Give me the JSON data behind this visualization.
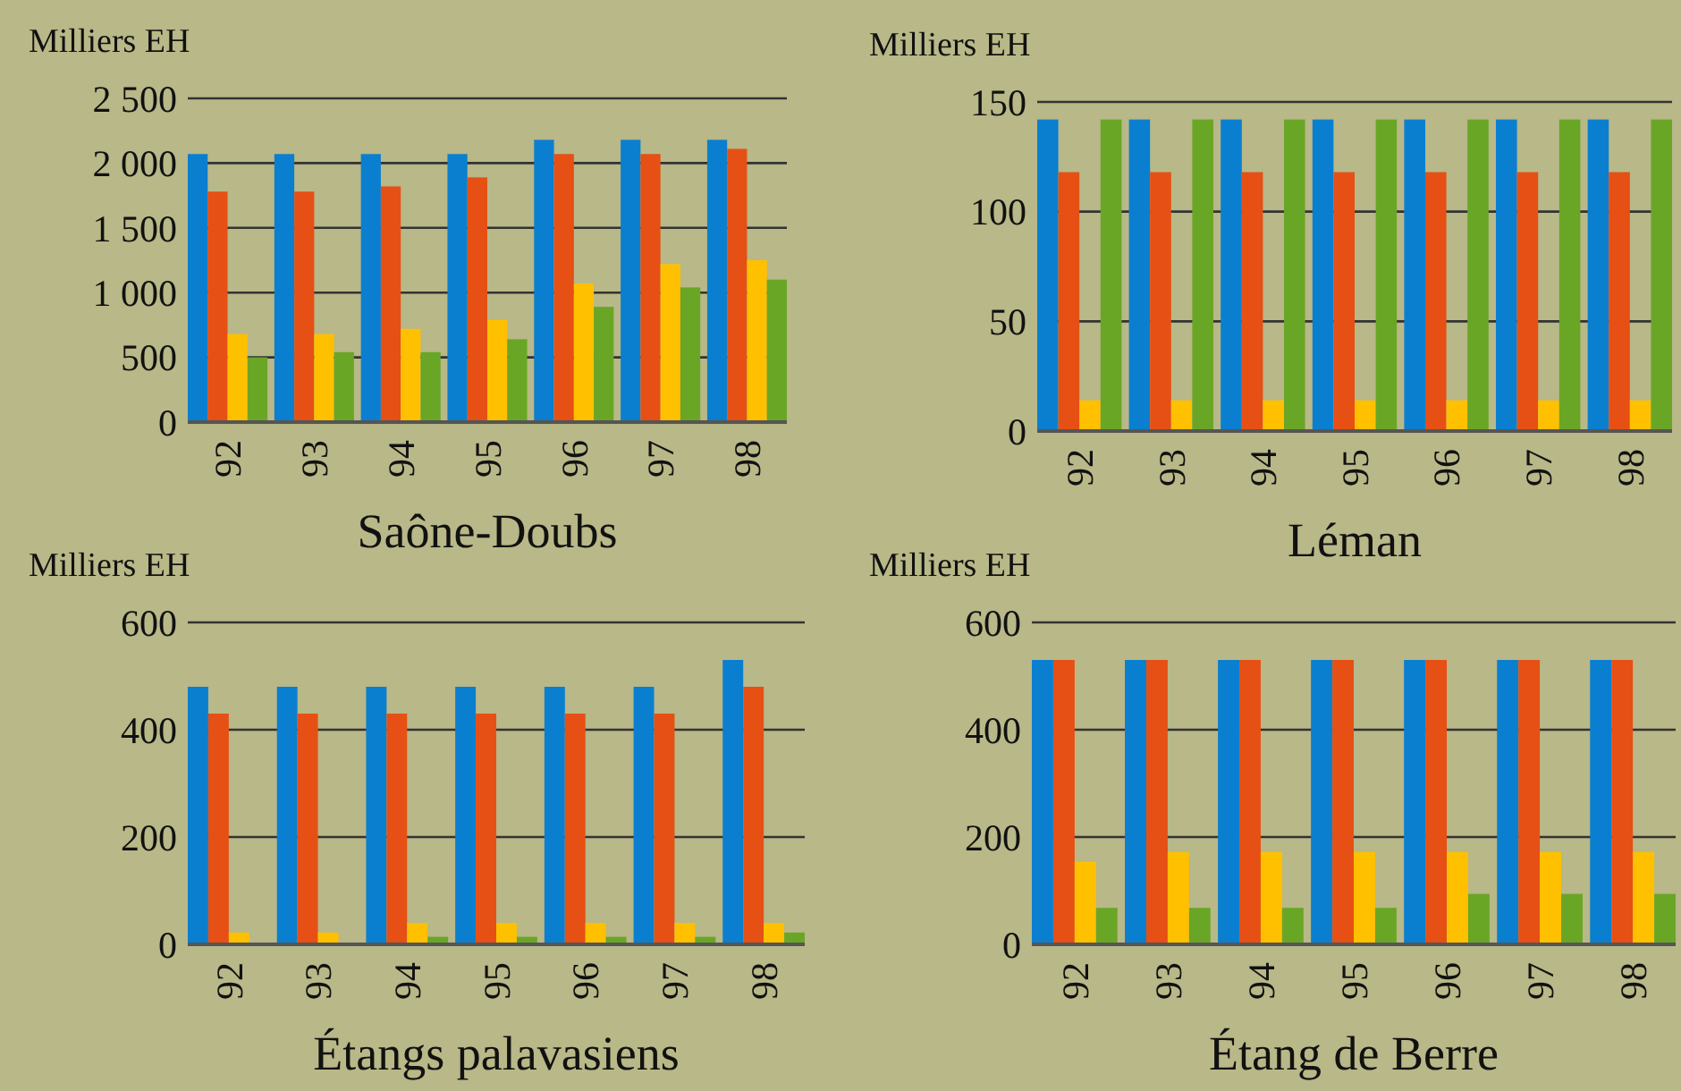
{
  "chart_data": [
    {
      "type": "bar",
      "title": "Saône-Doubs",
      "ylabel": "Milliers EH",
      "categories": [
        "92",
        "93",
        "94",
        "95",
        "96",
        "97",
        "98"
      ],
      "ylim": [
        0,
        2500
      ],
      "yticks": [
        0,
        500,
        {
          "value": 1000,
          "label": "1 000"
        },
        {
          "value": 1500,
          "label": "1 500"
        },
        {
          "value": 2000,
          "label": "2 000"
        },
        {
          "value": 2500,
          "label": "2 500"
        }
      ],
      "grid": "y",
      "series": [
        {
          "color": "#0a7fd0",
          "values": [
            2070,
            2070,
            2070,
            2070,
            2180,
            2180,
            2180
          ]
        },
        {
          "color": "#e65014",
          "values": [
            1780,
            1780,
            1820,
            1890,
            2070,
            2070,
            2110
          ]
        },
        {
          "color": "#ffc000",
          "values": [
            680,
            680,
            720,
            790,
            1070,
            1220,
            1250
          ]
        },
        {
          "color": "#6aa626",
          "values": [
            500,
            540,
            540,
            640,
            890,
            1040,
            1100
          ]
        }
      ]
    },
    {
      "type": "bar",
      "title": "Léman",
      "ylabel": "Milliers EH",
      "categories": [
        "92",
        "93",
        "94",
        "95",
        "96",
        "97",
        "98"
      ],
      "ylim": [
        0,
        150
      ],
      "yticks": [
        0,
        50,
        100,
        150
      ],
      "grid": "y",
      "series": [
        {
          "color": "#0a7fd0",
          "values": [
            142,
            142,
            142,
            142,
            142,
            142,
            142
          ]
        },
        {
          "color": "#e65014",
          "values": [
            118,
            118,
            118,
            118,
            118,
            118,
            118
          ]
        },
        {
          "color": "#ffc000",
          "values": [
            14,
            14,
            14,
            14,
            14,
            14,
            14
          ]
        },
        {
          "color": "#6aa626",
          "values": [
            142,
            142,
            142,
            142,
            142,
            142,
            142
          ]
        }
      ]
    },
    {
      "type": "bar",
      "title": "Étangs palavasiens",
      "ylabel": "Milliers EH",
      "categories": [
        "92",
        "93",
        "94",
        "95",
        "96",
        "97",
        "98"
      ],
      "ylim": [
        0,
        600
      ],
      "yticks": [
        0,
        200,
        400,
        600
      ],
      "grid": "y",
      "series": [
        {
          "color": "#0a7fd0",
          "values": [
            480,
            480,
            480,
            480,
            480,
            480,
            530
          ]
        },
        {
          "color": "#e65014",
          "values": [
            430,
            430,
            430,
            430,
            430,
            430,
            480
          ]
        },
        {
          "color": "#ffc000",
          "values": [
            22,
            22,
            40,
            40,
            40,
            40,
            40
          ]
        },
        {
          "color": "#6aa626",
          "values": [
            null,
            null,
            14,
            14,
            14,
            14,
            22
          ]
        }
      ]
    },
    {
      "type": "bar",
      "title": "Étang de Berre",
      "ylabel": "Milliers EH",
      "categories": [
        "92",
        "93",
        "94",
        "95",
        "96",
        "97",
        "98"
      ],
      "ylim": [
        0,
        600
      ],
      "yticks": [
        0,
        200,
        400,
        600
      ],
      "grid": "y",
      "series": [
        {
          "color": "#0a7fd0",
          "values": [
            530,
            530,
            530,
            530,
            530,
            530,
            530
          ]
        },
        {
          "color": "#e65014",
          "values": [
            530,
            530,
            530,
            530,
            530,
            530,
            530
          ]
        },
        {
          "color": "#ffc000",
          "values": [
            154,
            172,
            172,
            172,
            172,
            172,
            172
          ]
        },
        {
          "color": "#6aa626",
          "values": [
            68,
            68,
            68,
            68,
            94,
            94,
            94
          ]
        }
      ]
    }
  ]
}
